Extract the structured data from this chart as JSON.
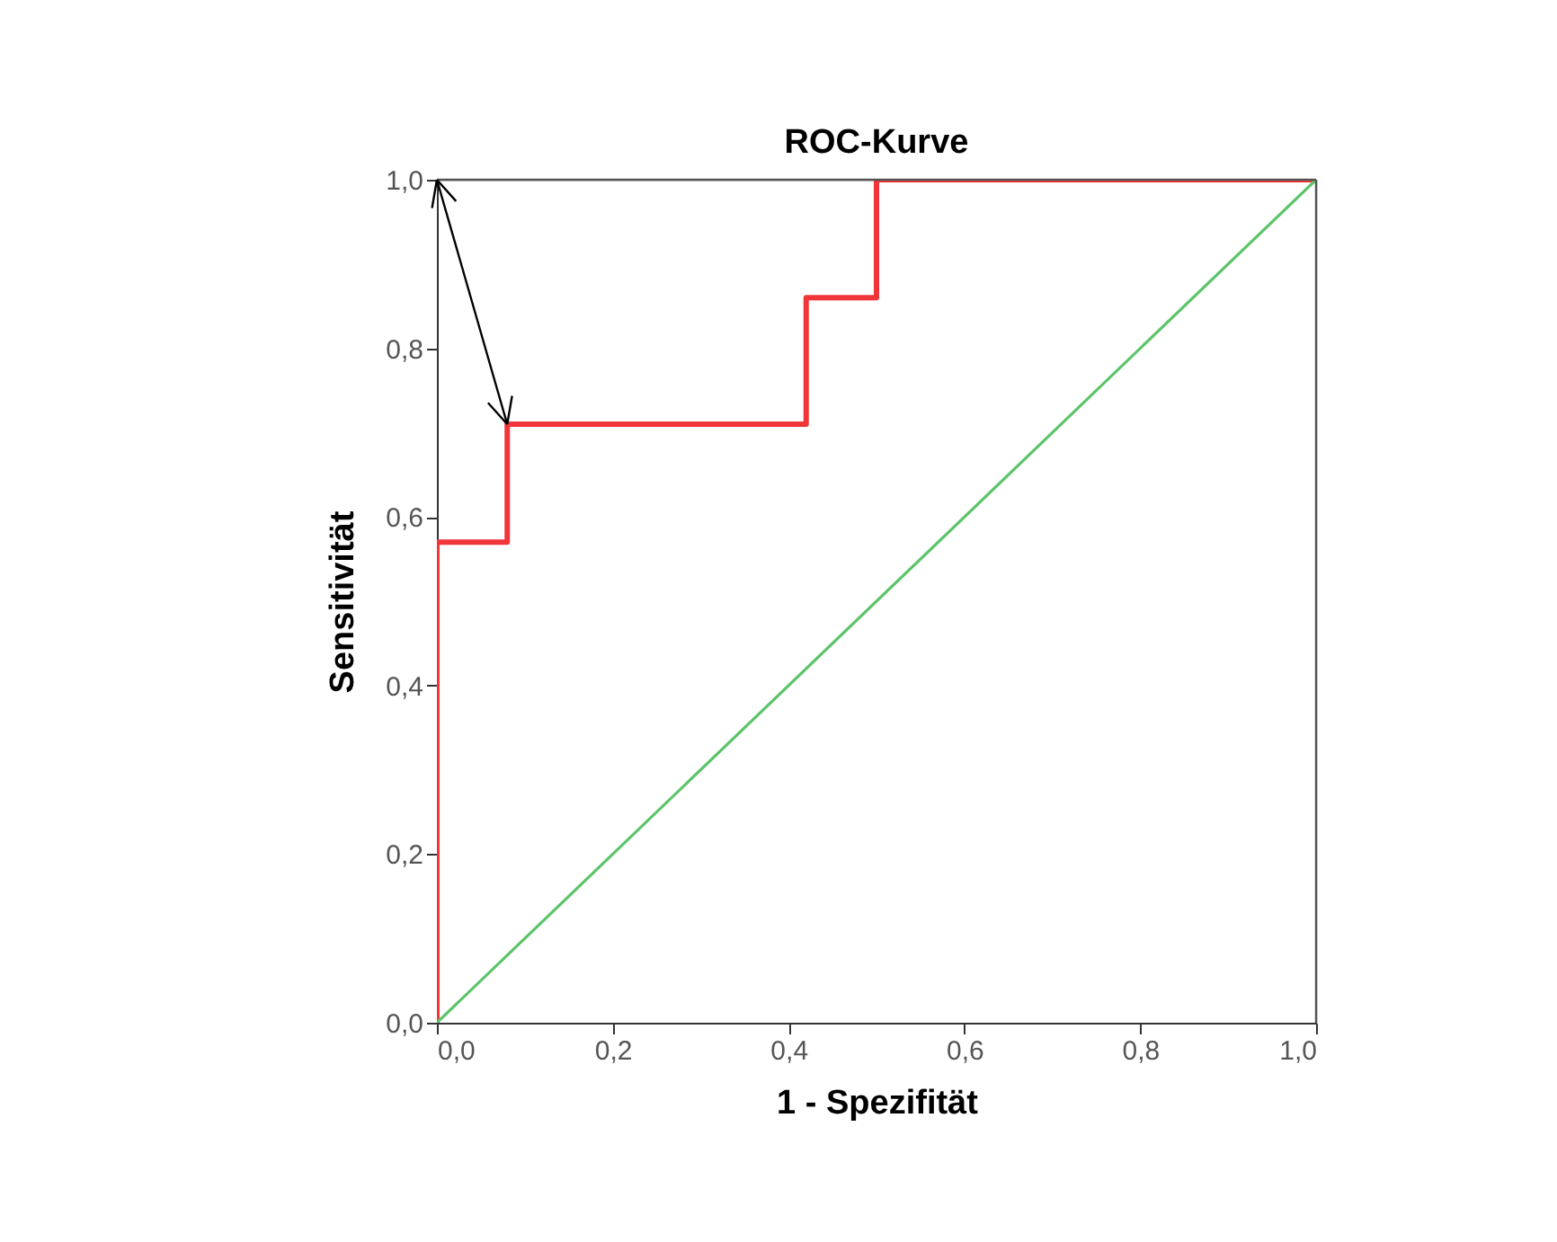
{
  "chart_data": {
    "type": "line",
    "title": "ROC-Kurve",
    "xlabel": "1 - Spezifität",
    "ylabel": "Sensitivität",
    "series": [
      {
        "color": "#f0363a",
        "x": [
          0,
          0,
          0.08,
          0.08,
          0.42,
          0.42,
          0.5,
          0.5,
          1
        ],
        "values": [
          0,
          0.57,
          0.57,
          0.71,
          0.71,
          0.86,
          0.86,
          1,
          1
        ]
      },
      {
        "color": "#5cc46a",
        "x": [
          0,
          1
        ],
        "values": [
          0,
          1
        ]
      }
    ],
    "xlim": [
      0,
      1
    ],
    "ylim": [
      0,
      1
    ],
    "xticks": [
      {
        "value": 0,
        "label": "0,0"
      },
      {
        "value": 0.2,
        "label": "0,2"
      },
      {
        "value": 0.4,
        "label": "0,4"
      },
      {
        "value": 0.6,
        "label": "0,6"
      },
      {
        "value": 0.8,
        "label": "0,8"
      },
      {
        "value": 1,
        "label": "1,0"
      }
    ],
    "yticks": [
      {
        "value": 0,
        "label": "0,0"
      },
      {
        "value": 0.2,
        "label": "0,2"
      },
      {
        "value": 0.4,
        "label": "0,4"
      },
      {
        "value": 0.6,
        "label": "0,6"
      },
      {
        "value": 0.8,
        "label": "0,8"
      },
      {
        "value": 1,
        "label": "1,0"
      }
    ],
    "grid": false,
    "marker": "none",
    "line_style": "solid"
  }
}
